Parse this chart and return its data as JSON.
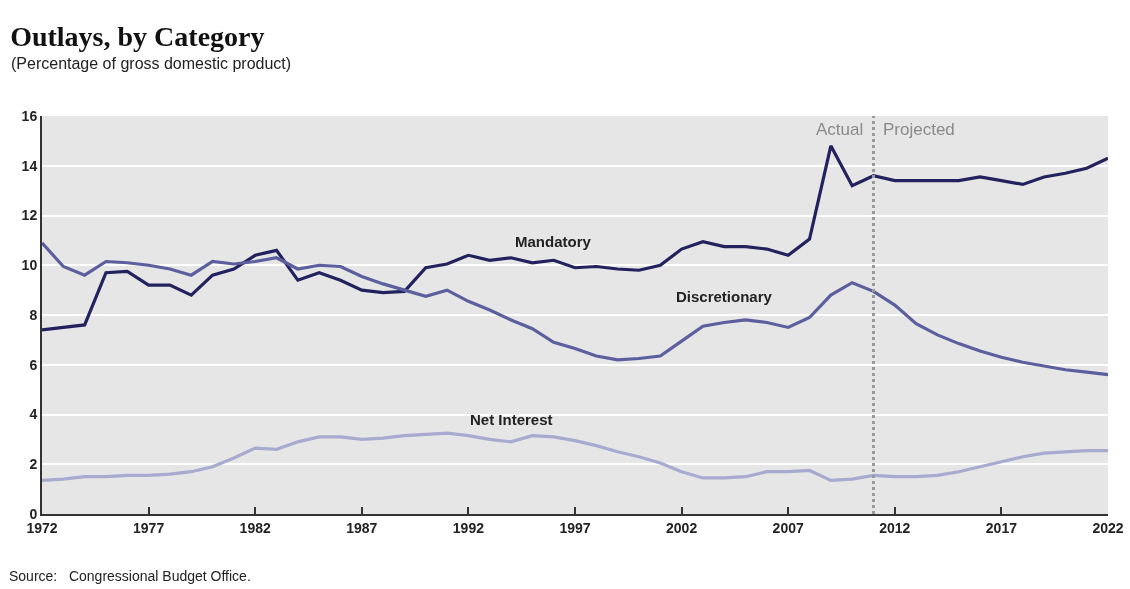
{
  "chart_data": {
    "type": "line",
    "title": "Outlays, by Category",
    "subtitle": "(Percentage of gross domestic product)",
    "x": [
      1972,
      1973,
      1974,
      1975,
      1976,
      1977,
      1978,
      1979,
      1980,
      1981,
      1982,
      1983,
      1984,
      1985,
      1986,
      1987,
      1988,
      1989,
      1990,
      1991,
      1992,
      1993,
      1994,
      1995,
      1996,
      1997,
      1998,
      1999,
      2000,
      2001,
      2002,
      2003,
      2004,
      2005,
      2006,
      2007,
      2008,
      2009,
      2010,
      2011,
      2012,
      2013,
      2014,
      2015,
      2016,
      2017,
      2018,
      2019,
      2020,
      2021,
      2022
    ],
    "series": [
      {
        "name": "Mandatory",
        "color": "#22235e",
        "values": [
          7.4,
          7.5,
          7.6,
          9.7,
          9.75,
          9.2,
          9.2,
          8.8,
          9.6,
          9.85,
          10.4,
          10.6,
          9.4,
          9.7,
          9.4,
          9.0,
          8.9,
          8.95,
          9.9,
          10.05,
          10.4,
          10.2,
          10.3,
          10.1,
          10.2,
          9.9,
          9.95,
          9.85,
          9.8,
          10.0,
          10.65,
          10.95,
          10.75,
          10.75,
          10.65,
          10.4,
          11.05,
          14.8,
          13.2,
          13.6,
          13.4,
          13.4,
          13.4,
          13.4,
          13.55,
          13.4,
          13.25,
          13.55,
          13.7,
          13.9,
          14.3
        ]
      },
      {
        "name": "Discretionary",
        "color": "#5c5f9e",
        "values": [
          10.9,
          9.95,
          9.6,
          10.15,
          10.1,
          10.0,
          9.85,
          9.6,
          10.15,
          10.05,
          10.15,
          10.3,
          9.85,
          10.0,
          9.95,
          9.55,
          9.25,
          9.0,
          8.75,
          9.0,
          8.55,
          8.2,
          7.8,
          7.45,
          6.9,
          6.65,
          6.35,
          6.2,
          6.25,
          6.35,
          6.95,
          7.55,
          7.7,
          7.8,
          7.7,
          7.5,
          7.9,
          8.8,
          9.3,
          8.95,
          8.4,
          7.65,
          7.2,
          6.85,
          6.55,
          6.3,
          6.1,
          5.95,
          5.8,
          5.7,
          5.6
        ]
      },
      {
        "name": "Net Interest",
        "color": "#a8abd0",
        "values": [
          1.35,
          1.4,
          1.5,
          1.5,
          1.55,
          1.55,
          1.6,
          1.7,
          1.9,
          2.25,
          2.65,
          2.6,
          2.9,
          3.1,
          3.1,
          3.0,
          3.05,
          3.15,
          3.2,
          3.25,
          3.15,
          3.0,
          2.9,
          3.15,
          3.1,
          2.95,
          2.75,
          2.5,
          2.3,
          2.05,
          1.7,
          1.45,
          1.45,
          1.5,
          1.7,
          1.7,
          1.75,
          1.35,
          1.4,
          1.55,
          1.5,
          1.5,
          1.55,
          1.7,
          1.9,
          2.1,
          2.3,
          2.45,
          2.5,
          2.55,
          2.55
        ]
      }
    ],
    "xlim": [
      1972,
      2022
    ],
    "xticks": [
      1972,
      1977,
      1982,
      1987,
      1992,
      1997,
      2002,
      2007,
      2012,
      2017,
      2022
    ],
    "ylim": [
      0,
      16
    ],
    "yticks": [
      0,
      2,
      4,
      6,
      8,
      10,
      12,
      14,
      16
    ],
    "grid": "y",
    "legend": false,
    "marker": "none",
    "line_style": "solid",
    "ref_lines": [
      {
        "axis": "x",
        "value": 2011,
        "color": "#999999",
        "line_style": "dotted"
      }
    ],
    "annotations": [
      {
        "text": "Actual",
        "x": 2011,
        "y": 15.45
      },
      {
        "text": "Projected",
        "x": 2011,
        "y": 15.45
      },
      "Source:   Congressional Budget Office."
    ]
  }
}
